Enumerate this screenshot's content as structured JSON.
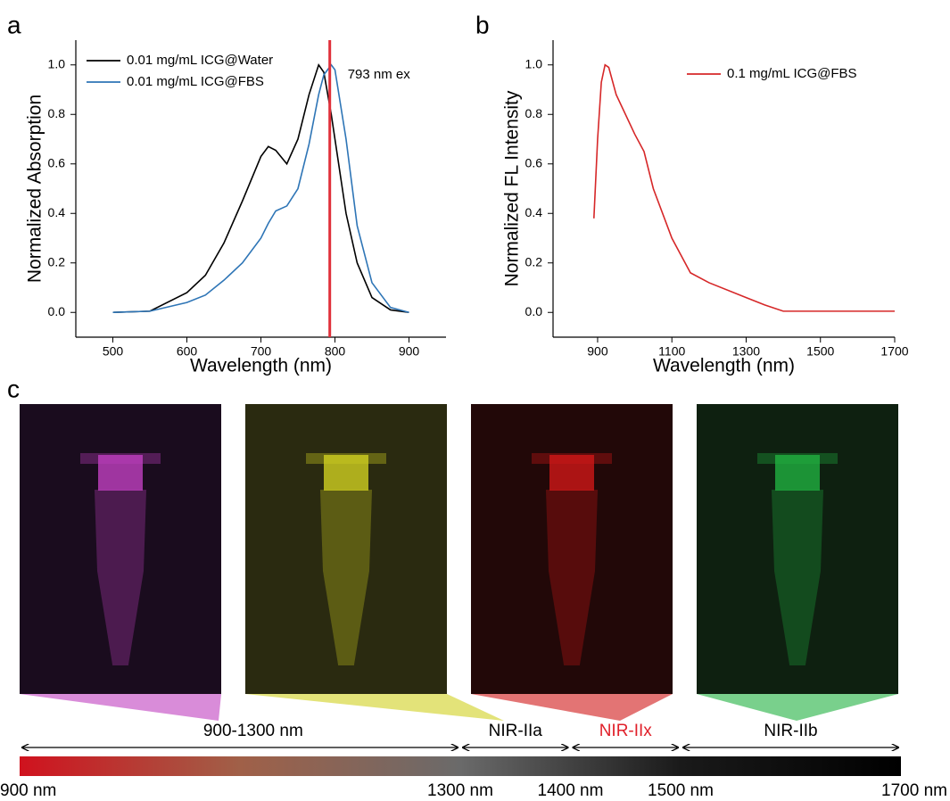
{
  "panel_labels": [
    "a",
    "b",
    "c"
  ],
  "chart_data": [
    {
      "type": "line",
      "x_label": "Wavelength (nm)",
      "y_label": "Normalized Absorption",
      "xlim": [
        450,
        950
      ],
      "xticks": [
        500,
        600,
        700,
        800,
        900
      ],
      "ylim": [
        -0.1,
        1.1
      ],
      "yticks": [
        {
          "value": 0,
          "label": "0.0"
        },
        0.2,
        0.4,
        0.6,
        0.8,
        {
          "value": 1,
          "label": "1.0"
        }
      ],
      "x": [
        500,
        550,
        600,
        625,
        650,
        675,
        700,
        710,
        720,
        735,
        750,
        765,
        778,
        785,
        795,
        800,
        815,
        830,
        850,
        875,
        900
      ],
      "series": [
        {
          "name": "0.01 mg/mL ICG@Water",
          "color": "#000000",
          "values": [
            0,
            0.005,
            0.08,
            0.15,
            0.28,
            0.45,
            0.63,
            0.67,
            0.655,
            0.6,
            0.7,
            0.88,
            1.0,
            0.97,
            0.8,
            0.7,
            0.4,
            0.2,
            0.06,
            0.01,
            0
          ]
        },
        {
          "name": "0.01 mg/mL ICG@FBS",
          "color": "#2e75b6",
          "values": [
            0,
            0.005,
            0.04,
            0.07,
            0.13,
            0.2,
            0.3,
            0.36,
            0.41,
            0.43,
            0.5,
            0.68,
            0.88,
            0.96,
            1.0,
            0.98,
            0.7,
            0.35,
            0.12,
            0.02,
            0
          ]
        }
      ],
      "vline": {
        "x": 793,
        "label": "793 nm ex",
        "color": "#e0303a"
      }
    },
    {
      "type": "line",
      "x_label": "Wavelength (nm)",
      "y_label": "Normalized FL Intensity",
      "xlim": [
        780,
        1700
      ],
      "xticks": [
        900,
        1100,
        1300,
        1500,
        1700
      ],
      "ylim": [
        -0.1,
        1.1
      ],
      "yticks": [
        {
          "value": 0,
          "label": "0.0"
        },
        0.2,
        0.4,
        0.6,
        0.8,
        {
          "value": 1,
          "label": "1.0"
        }
      ],
      "x": [
        890,
        900,
        910,
        920,
        930,
        950,
        1000,
        1025,
        1050,
        1100,
        1150,
        1200,
        1300,
        1350,
        1400,
        1500,
        1700
      ],
      "series": [
        {
          "name": "0.1 mg/mL ICG@FBS",
          "color": "#d62728",
          "values": [
            0.38,
            0.7,
            0.93,
            1.0,
            0.99,
            0.88,
            0.72,
            0.65,
            0.5,
            0.3,
            0.16,
            0.12,
            0.06,
            0.03,
            0.005,
            0.005,
            0.005
          ]
        }
      ]
    }
  ],
  "spectrum": {
    "range": [
      900,
      1700
    ],
    "ticks": [
      {
        "value": 900,
        "label": "900 nm"
      },
      {
        "value": 1300,
        "label": "1300 nm"
      },
      {
        "value": 1400,
        "label": "1400 nm"
      },
      {
        "value": 1500,
        "label": "1500 nm"
      },
      {
        "value": 1700,
        "label": "1700 nm"
      }
    ],
    "bands": [
      {
        "label": "900-1300 nm",
        "range": [
          900,
          1300
        ],
        "color": "#000000"
      },
      {
        "label": "NIR-IIa",
        "range": [
          1300,
          1400
        ],
        "color": "#000000"
      },
      {
        "label": "NIR-IIx",
        "range": [
          1400,
          1500
        ],
        "color": "#e0202a"
      },
      {
        "label": "NIR-IIb",
        "range": [
          1500,
          1700
        ],
        "color": "#000000"
      }
    ]
  }
}
